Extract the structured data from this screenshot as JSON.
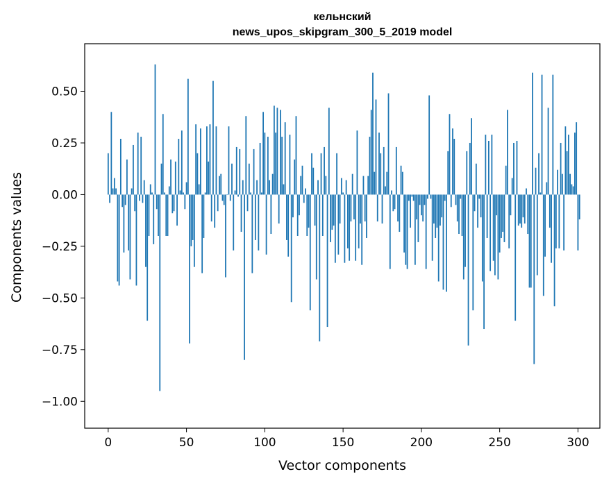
{
  "chart_data": {
    "type": "bar",
    "title_line1": "кельнский",
    "title_line2": "news_upos_skipgram_300_5_2019 model",
    "xlabel": "Vector components",
    "ylabel": "Components values",
    "xlim": [
      -15,
      314
    ],
    "ylim": [
      -1.13,
      0.73
    ],
    "xticks": [
      0,
      50,
      100,
      150,
      200,
      250,
      300
    ],
    "xtick_labels": [
      "0",
      "50",
      "100",
      "150",
      "200",
      "250",
      "300"
    ],
    "yticks": [
      0.5,
      0.25,
      0.0,
      -0.25,
      -0.5,
      -0.75,
      -1.0
    ],
    "ytick_labels": [
      "0.50",
      "0.25",
      "0.00",
      "−0.25",
      "−0.50",
      "−0.75",
      "−1.00"
    ],
    "bar_color": "#1f77b4",
    "grid": false,
    "values": [
      0.2,
      -0.04,
      0.4,
      0.03,
      0.08,
      0.03,
      -0.42,
      -0.44,
      0.27,
      -0.06,
      -0.28,
      -0.05,
      0.17,
      -0.27,
      -0.41,
      0.03,
      0.24,
      -0.08,
      -0.44,
      0.3,
      -0.03,
      0.28,
      -0.04,
      0.07,
      -0.35,
      -0.61,
      -0.2,
      0.05,
      0.01,
      -0.24,
      0.63,
      -0.07,
      -0.2,
      -0.95,
      0.15,
      0.39,
      0.01,
      -0.2,
      -0.2,
      0.04,
      0.17,
      -0.09,
      -0.08,
      0.16,
      -0.15,
      0.27,
      0.02,
      0.31,
      0.01,
      -0.07,
      0.06,
      0.56,
      -0.72,
      -0.25,
      -0.22,
      -0.35,
      0.34,
      0.2,
      0.05,
      0.32,
      -0.38,
      -0.21,
      0.01,
      0.33,
      0.16,
      0.34,
      -0.13,
      0.55,
      -0.16,
      0.33,
      -0.08,
      0.09,
      0.1,
      -0.03,
      -0.05,
      -0.4,
      0.0,
      0.33,
      -0.03,
      0.15,
      -0.27,
      0.02,
      0.23,
      -0.01,
      0.22,
      -0.18,
      0.07,
      -0.8,
      0.38,
      -0.08,
      0.15,
      0.01,
      -0.38,
      0.22,
      -0.22,
      0.07,
      -0.27,
      0.25,
      0.01,
      0.4,
      0.3,
      -0.29,
      0.28,
      0.07,
      -0.19,
      0.1,
      0.43,
      0.3,
      0.42,
      -0.14,
      0.41,
      0.28,
      0.05,
      0.35,
      -0.22,
      -0.3,
      0.29,
      -0.52,
      -0.11,
      0.17,
      0.38,
      -0.2,
      -0.1,
      0.09,
      0.14,
      -0.04,
      0.03,
      -0.2,
      -0.16,
      -0.56,
      0.2,
      0.13,
      -0.15,
      -0.41,
      0.07,
      -0.71,
      0.2,
      -0.2,
      0.23,
      0.09,
      -0.64,
      0.42,
      -0.23,
      -0.17,
      -0.15,
      -0.33,
      0.2,
      -0.29,
      -0.14,
      0.08,
      0.01,
      -0.33,
      0.07,
      -0.26,
      -0.32,
      -0.13,
      0.1,
      -0.12,
      -0.32,
      0.31,
      -0.26,
      -0.14,
      -0.34,
      0.09,
      -0.13,
      -0.21,
      0.09,
      0.28,
      0.41,
      0.59,
      0.11,
      0.46,
      -0.13,
      0.3,
      0.2,
      -0.14,
      0.23,
      0.04,
      0.11,
      0.49,
      -0.36,
      0.02,
      -0.08,
      -0.07,
      0.23,
      -0.13,
      -0.18,
      0.14,
      0.11,
      -0.28,
      -0.34,
      -0.36,
      -0.03,
      -0.16,
      -0.01,
      -0.03,
      -0.34,
      -0.12,
      -0.23,
      -0.05,
      -0.1,
      -0.13,
      -0.05,
      -0.36,
      -0.02,
      0.48,
      -0.02,
      -0.32,
      -0.14,
      -0.21,
      -0.16,
      -0.42,
      -0.15,
      -0.11,
      -0.46,
      -0.03,
      -0.47,
      0.21,
      0.39,
      -0.06,
      0.32,
      0.27,
      -0.05,
      -0.13,
      -0.19,
      -0.02,
      -0.2,
      -0.41,
      -0.35,
      0.21,
      -0.73,
      0.25,
      0.37,
      -0.56,
      -0.08,
      0.15,
      -0.16,
      -0.02,
      -0.11,
      -0.42,
      -0.65,
      0.29,
      -0.21,
      0.26,
      -0.37,
      0.29,
      -0.32,
      -0.39,
      -0.1,
      -0.41,
      -0.28,
      -0.21,
      -0.18,
      -0.23,
      0.14,
      0.41,
      -0.26,
      -0.1,
      0.08,
      0.25,
      -0.61,
      0.26,
      -0.15,
      -0.14,
      -0.16,
      -0.11,
      -0.14,
      0.03,
      -0.19,
      -0.45,
      -0.45,
      0.59,
      -0.82,
      0.13,
      -0.39,
      0.2,
      0.01,
      0.58,
      -0.49,
      -0.3,
      0.06,
      0.42,
      -0.16,
      -0.33,
      0.58,
      -0.54,
      -0.26,
      0.12,
      -0.26,
      0.25,
      0.1,
      -0.27,
      0.33,
      0.21,
      0.29,
      0.1,
      0.05,
      0.04,
      0.3,
      0.35,
      -0.27,
      -0.12
    ]
  }
}
